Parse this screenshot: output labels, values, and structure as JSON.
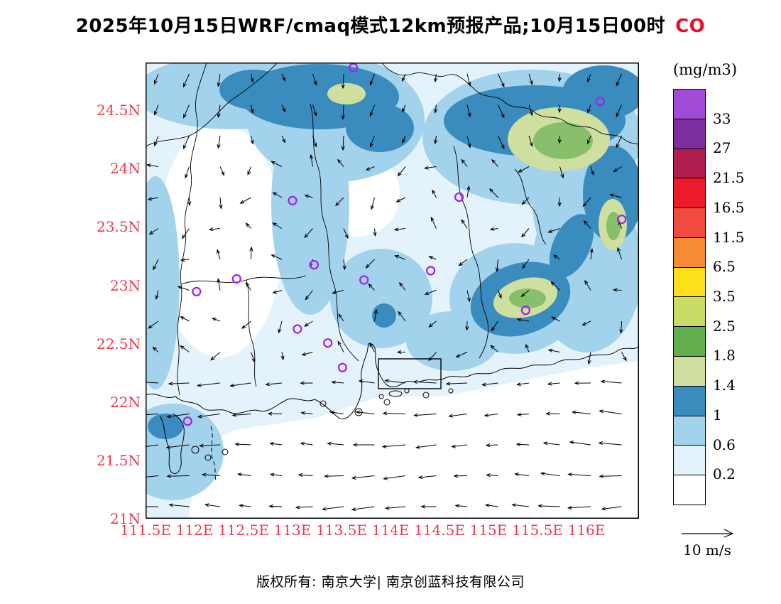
{
  "title": {
    "text": "2025年10月15日WRF/cmaq模式12km预报产品;10月15日00时",
    "species": "CO"
  },
  "axes": {
    "lat_ticks": [
      "24.5N",
      "24N",
      "23.5N",
      "23N",
      "22.5N",
      "22N",
      "21.5N",
      "21N"
    ],
    "lon_ticks": [
      "111.5E",
      "112E",
      "112.5E",
      "113E",
      "113.5E",
      "114E",
      "114.5E",
      "115E",
      "115.5E",
      "116E"
    ]
  },
  "colorbar": {
    "units": "(mg/m3)",
    "tick_labels": [
      "33",
      "27",
      "21.5",
      "16.5",
      "11.5",
      "6.5",
      "3.5",
      "2.5",
      "1.8",
      "1.4",
      "1",
      "0.6",
      "0.2"
    ],
    "colors_top_to_bottom": [
      "#A14BD8",
      "#7D2FA0",
      "#B01E4D",
      "#EC1B2B",
      "#F14A41",
      "#F68B33",
      "#FFE01A",
      "#C9DC64",
      "#62AE4E",
      "#CFDFA0",
      "#3A8BBE",
      "#A2D2EC",
      "#E4F3FB",
      "#FFFFFF"
    ]
  },
  "colors": {
    "axis_labels": "#E93B4E",
    "species_label": "#E8102E",
    "station_marker": "#A020F0",
    "boundaries": "#000000"
  },
  "wind_legend": {
    "label": "10 m/s"
  },
  "footer": {
    "text": "版权所有: 南京大学| 南京创蓝科技有限公司"
  },
  "chart_data": {
    "type": "heatmap",
    "title": "2025年10月15日WRF/cmaq模式12km预报产品;10月15日00时 CO",
    "species": "CO",
    "units": "mg/m3",
    "lon_range": [
      111.5,
      116.55
    ],
    "lat_range": [
      21.0,
      24.91
    ],
    "contour_levels": [
      0.2,
      0.6,
      1,
      1.4,
      1.8,
      2.5,
      3.5,
      6.5,
      11.5,
      16.5,
      21.5,
      27,
      33
    ],
    "palette_low_to_high": [
      "#FFFFFF",
      "#E4F3FB",
      "#A2D2EC",
      "#3A8BBE",
      "#CFDFA0",
      "#62AE4E",
      "#C9DC64",
      "#FFE01A",
      "#F68B33",
      "#F14A41",
      "#EC1B2B",
      "#B01E4D",
      "#7D2FA0",
      "#A14BD8"
    ],
    "field_summary": "CO field over Guangdong: background below 0.6 mg/m3 (white to pale blue) over western Guangdong and offshore; 0.6-1.4 mg/m3 blue bands along the northern border and eastern half; cores of 1.4-2.5 mg/m3 (khaki/green) near the north-central border, the northeast (Meizhou area), the east coast mountains and around 115.3E/23N.",
    "high_co_regions": [
      {
        "center_lon": 113.55,
        "center_lat": 24.65,
        "max_level_mg_m3": "1.4-1.8"
      },
      {
        "center_lon": 115.7,
        "center_lat": 24.2,
        "max_level_mg_m3": "1.8-2.5"
      },
      {
        "center_lon": 116.3,
        "center_lat": 23.55,
        "max_level_mg_m3": "1.8-2.5"
      },
      {
        "center_lon": 115.35,
        "center_lat": 23.0,
        "max_level_mg_m3": "1.8-2.5"
      },
      {
        "center_lon": 113.93,
        "center_lat": 22.75,
        "max_level_mg_m3": "1-1.4"
      },
      {
        "center_lon": 111.67,
        "center_lat": 21.8,
        "max_level_mg_m3": "1-1.4"
      }
    ],
    "stations_lon_lat": [
      [
        113.62,
        24.87
      ],
      [
        116.14,
        24.58
      ],
      [
        116.36,
        23.57
      ],
      [
        113.0,
        23.73
      ],
      [
        114.7,
        23.76
      ],
      [
        113.22,
        23.18
      ],
      [
        114.41,
        23.13
      ],
      [
        112.43,
        23.06
      ],
      [
        112.02,
        22.95
      ],
      [
        113.73,
        23.05
      ],
      [
        113.05,
        22.63
      ],
      [
        113.36,
        22.51
      ],
      [
        113.51,
        22.3
      ],
      [
        115.38,
        22.79
      ],
      [
        111.93,
        21.84
      ]
    ],
    "wind": {
      "reference_vector": "10 m/s",
      "pattern": "Easterly flow ~5-10 m/s over the northern South China Sea (southern part of map); weak and variable winds inland; light northerly flow along the northern boundary."
    }
  }
}
